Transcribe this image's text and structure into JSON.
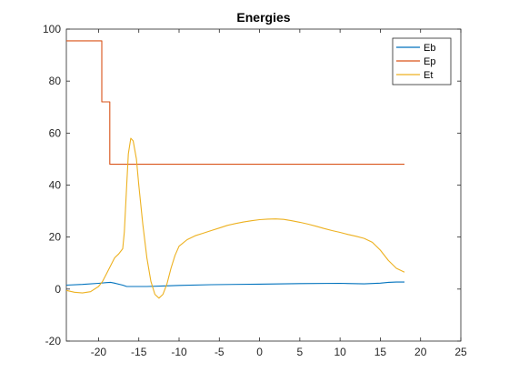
{
  "chart_data": {
    "type": "line",
    "title": "Energies",
    "xlabel": "",
    "ylabel": "",
    "xlim": [
      -24,
      25
    ],
    "ylim": [
      -20,
      100
    ],
    "xticks": [
      -20,
      -15,
      -10,
      -5,
      0,
      5,
      10,
      15,
      20,
      25
    ],
    "xtick_labels": [
      "-20",
      "-15",
      "-10",
      "-5",
      "0",
      "5",
      "10",
      "15",
      "20",
      "25"
    ],
    "yticks": [
      -20,
      0,
      20,
      40,
      60,
      80,
      100
    ],
    "ytick_labels": [
      "-20",
      "0",
      "20",
      "40",
      "60",
      "80",
      "100"
    ],
    "grid": false,
    "legend_position": "top-right",
    "series": [
      {
        "name": "Eb",
        "color": "#0072BD",
        "x": [
          -24,
          -22,
          -20,
          -19,
          -18.5,
          -18,
          -17,
          -16.5,
          -16,
          -14,
          -12,
          -10,
          -6,
          0,
          5,
          10,
          13,
          15,
          16,
          17,
          18
        ],
        "y": [
          1.5,
          1.8,
          2.2,
          2.5,
          2.6,
          2.3,
          1.5,
          1.0,
          1.0,
          1.0,
          1.2,
          1.4,
          1.7,
          1.9,
          2.1,
          2.2,
          2.0,
          2.3,
          2.6,
          2.7,
          2.7
        ]
      },
      {
        "name": "Ep",
        "color": "#D95319",
        "x": [
          -24,
          -19.6,
          -19.6,
          -18.6,
          -18.6,
          18
        ],
        "y": [
          95.5,
          95.5,
          72,
          72,
          48,
          48
        ]
      },
      {
        "name": "Et",
        "color": "#EDB120",
        "x": [
          -24,
          -23,
          -22,
          -21,
          -20,
          -19.5,
          -19,
          -18.5,
          -18,
          -17.5,
          -17,
          -16.8,
          -16.5,
          -16.3,
          -16,
          -15.7,
          -15.3,
          -15,
          -14.5,
          -14,
          -13.5,
          -13,
          -12.5,
          -12,
          -11.5,
          -11,
          -10.5,
          -10,
          -9,
          -8,
          -7,
          -6,
          -5,
          -4,
          -3,
          -2,
          -1,
          0,
          1,
          2,
          3,
          4,
          5,
          6,
          7,
          8,
          9,
          10,
          11,
          12,
          13,
          14,
          15,
          16,
          17,
          18
        ],
        "y": [
          -0.5,
          -1.2,
          -1.5,
          -1.0,
          1.0,
          3.0,
          6.0,
          9.0,
          12.0,
          13.5,
          15.5,
          22.0,
          40.0,
          52.0,
          58.0,
          57.0,
          50.0,
          40.0,
          25.0,
          12.0,
          3.0,
          -2.0,
          -3.5,
          -2.0,
          2.0,
          8.0,
          13.0,
          16.5,
          19.0,
          20.5,
          21.5,
          22.5,
          23.5,
          24.5,
          25.2,
          25.8,
          26.3,
          26.7,
          26.9,
          27.0,
          26.8,
          26.3,
          25.7,
          25.0,
          24.2,
          23.3,
          22.5,
          21.8,
          21.0,
          20.3,
          19.5,
          18.0,
          15.0,
          11.0,
          8.0,
          6.5
        ]
      }
    ]
  }
}
